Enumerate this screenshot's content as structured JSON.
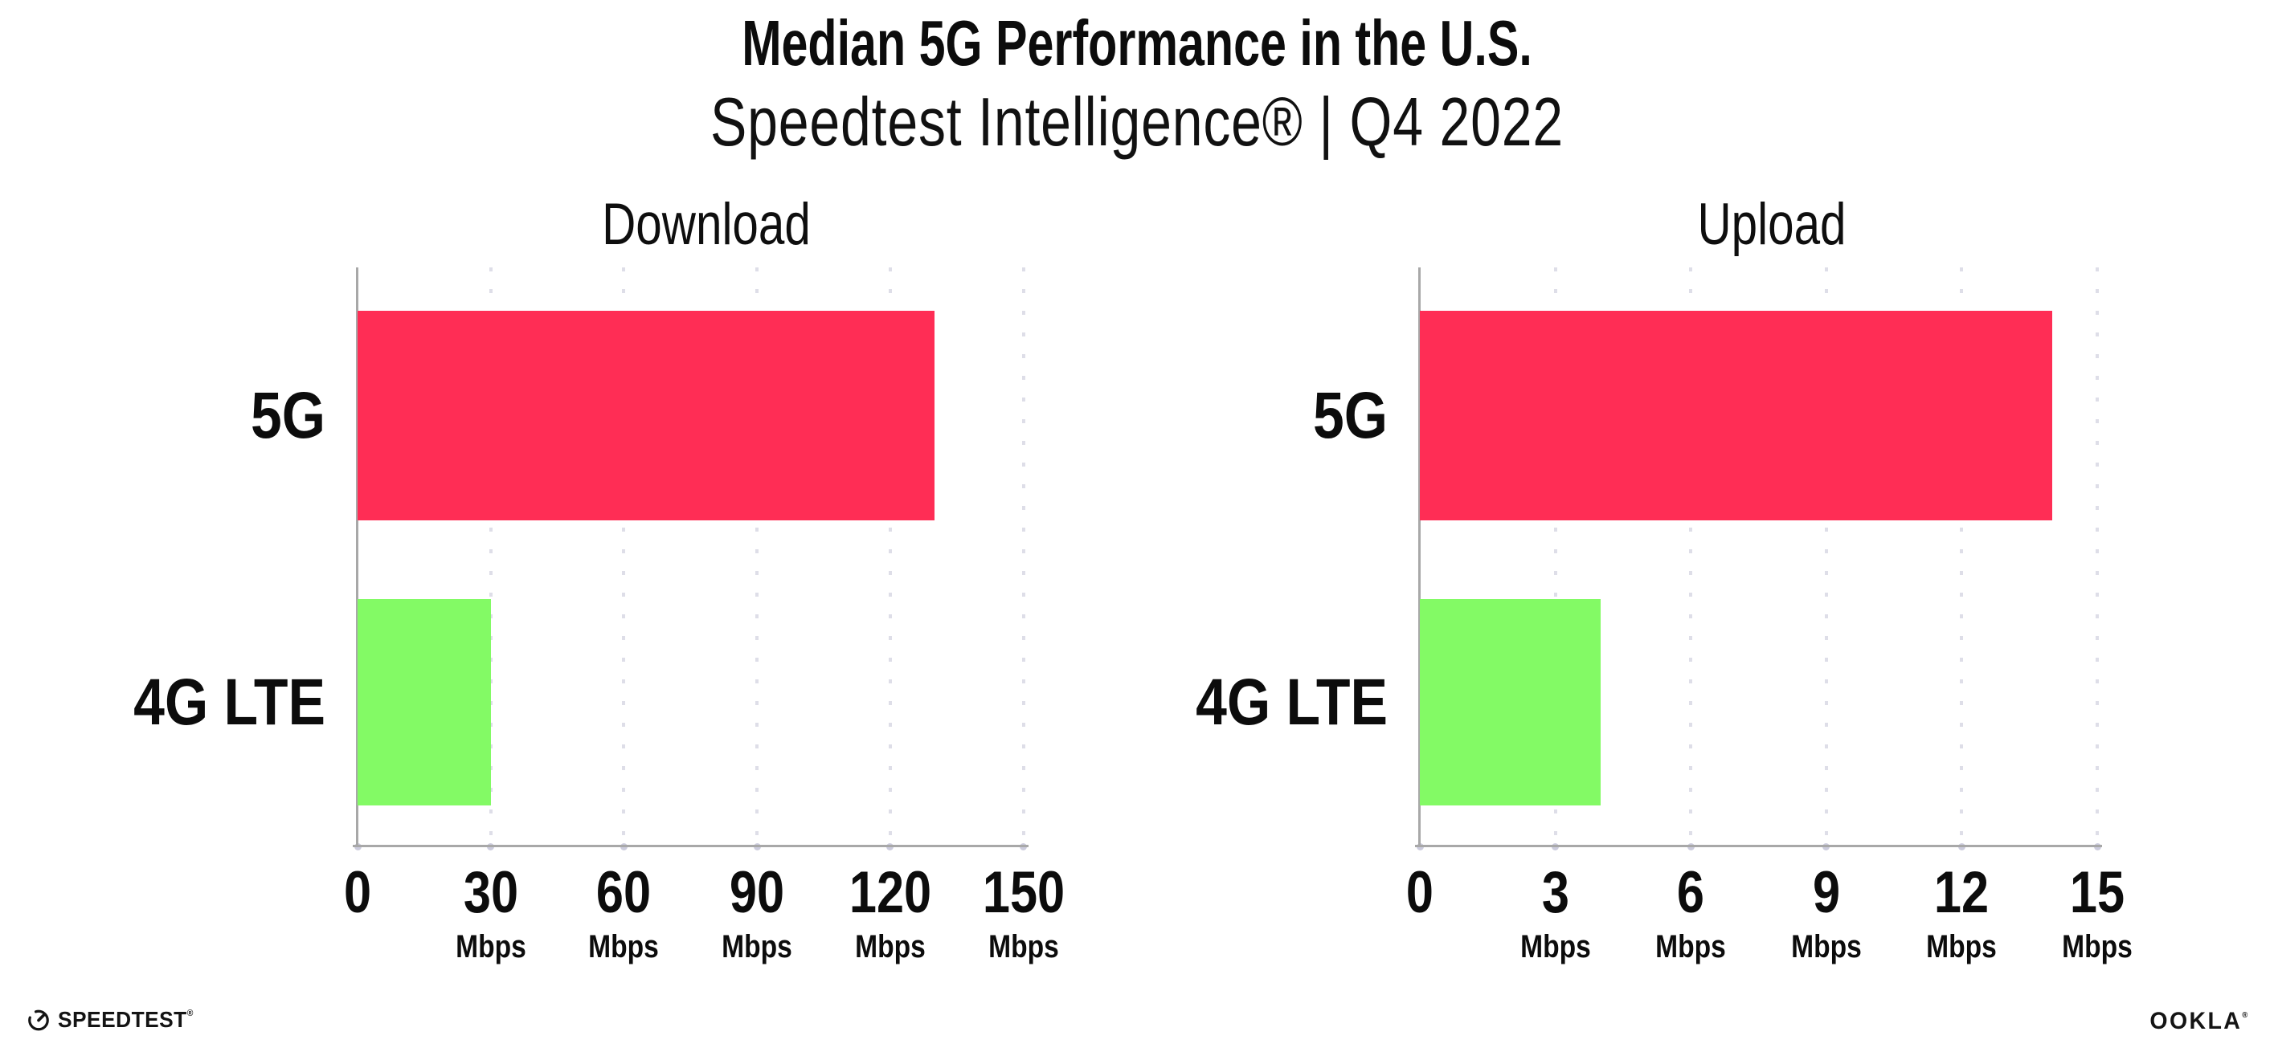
{
  "title": "Median 5G Performance in the U.S.",
  "subtitle": "Speedtest Intelligence® | Q4 2022",
  "branding": {
    "speedtest_icon": "speedtest-gauge-icon",
    "speedtest": "SPEEDTEST",
    "speedtest_mark": "®",
    "ookla": "OOKLA",
    "ookla_mark": "®"
  },
  "colors": {
    "bar_5g": "#ff2d55",
    "bar_4g_lte": "#83fa65",
    "gridline": "#dedee8",
    "axis": "#a8a8a8",
    "text": "#0c0c0c"
  },
  "chart_data": [
    {
      "type": "bar",
      "orientation": "horizontal",
      "title": "Download",
      "categories": [
        "5G",
        "4G LTE"
      ],
      "values": [
        130,
        30
      ],
      "unit": "Mbps",
      "xlim": [
        0,
        150
      ],
      "xticks": [
        0,
        30,
        60,
        90,
        120,
        150
      ],
      "grid": "dotted-vertical",
      "legend": "none",
      "series_colors": [
        "#ff2d55",
        "#83fa65"
      ]
    },
    {
      "type": "bar",
      "orientation": "horizontal",
      "title": "Upload",
      "categories": [
        "5G",
        "4G LTE"
      ],
      "values": [
        14,
        4
      ],
      "unit": "Mbps",
      "xlim": [
        0,
        15
      ],
      "xticks": [
        0,
        3,
        6,
        9,
        12,
        15
      ],
      "grid": "dotted-vertical",
      "legend": "none",
      "series_colors": [
        "#ff2d55",
        "#83fa65"
      ]
    }
  ]
}
